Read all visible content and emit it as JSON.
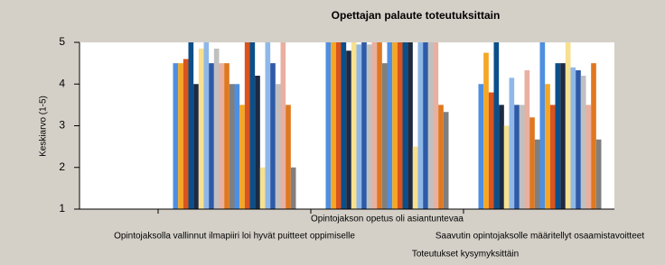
{
  "chart_data": {
    "type": "bar",
    "title": "Opettajan palaute toteutuksittain",
    "x_label": "Toteutukset kysymyksittäin",
    "y_label": "Keskiarvo (1-5)",
    "categories": [
      "Opintojaksolla vallinnut ilmapiiri loi hyvät puitteet oppimiselle",
      "Opintojakson opetus oli asiantuntevaa",
      "Saavutin opintojaksolle määritellyt osaamistavoitteet"
    ],
    "ylim": [
      1,
      5
    ],
    "yticks": [
      1,
      2,
      3,
      4,
      5
    ],
    "grid": false,
    "series": [
      {
        "color": "#4f8fe0",
        "values": [
          4.5,
          5,
          4
        ]
      },
      {
        "color": "#f5a623",
        "values": [
          4.5,
          5,
          4.75
        ]
      },
      {
        "color": "#d9541e",
        "values": [
          4.6,
          5,
          3.8
        ]
      },
      {
        "color": "#0b4f8a",
        "values": [
          5,
          5,
          5
        ]
      },
      {
        "color": "#1c2a44",
        "values": [
          4,
          4.8,
          3.5
        ]
      },
      {
        "color": "#f7e08f",
        "values": [
          4.85,
          5,
          3
        ]
      },
      {
        "color": "#8fb8e8",
        "values": [
          5,
          4.95,
          4.15
        ]
      },
      {
        "color": "#2e5aa8",
        "values": [
          4.5,
          5,
          3.5
        ]
      },
      {
        "color": "#c0c0c0",
        "values": [
          4.85,
          4.95,
          3.5
        ]
      },
      {
        "color": "#e8b0a0",
        "values": [
          4.5,
          5,
          4.33
        ]
      },
      {
        "color": "#e07820",
        "values": [
          4.5,
          5,
          3.2
        ]
      },
      {
        "color": "#7f7f7f",
        "values": [
          4,
          4.5,
          2.67
        ]
      },
      {
        "color": "#4f8fe0",
        "values": [
          4,
          5,
          5
        ]
      },
      {
        "color": "#f5a623",
        "values": [
          3.5,
          5,
          4
        ]
      },
      {
        "color": "#d9541e",
        "values": [
          5,
          5,
          3.5
        ]
      },
      {
        "color": "#0b4f8a",
        "values": [
          5,
          5,
          4.5
        ]
      },
      {
        "color": "#1c2a44",
        "values": [
          4.2,
          5,
          4.5
        ]
      },
      {
        "color": "#f7e08f",
        "values": [
          2,
          2.5,
          5
        ]
      },
      {
        "color": "#8fb8e8",
        "values": [
          5,
          5,
          4.4
        ]
      },
      {
        "color": "#2e5aa8",
        "values": [
          4.5,
          5,
          4.33
        ]
      },
      {
        "color": "#c0c0c0",
        "values": [
          4,
          5,
          4.2
        ]
      },
      {
        "color": "#e8b0a0",
        "values": [
          5,
          5,
          3.5
        ]
      },
      {
        "color": "#e07820",
        "values": [
          3.5,
          3.5,
          4.5
        ]
      },
      {
        "color": "#7f7f7f",
        "values": [
          2,
          3.33,
          2.67
        ]
      }
    ]
  }
}
